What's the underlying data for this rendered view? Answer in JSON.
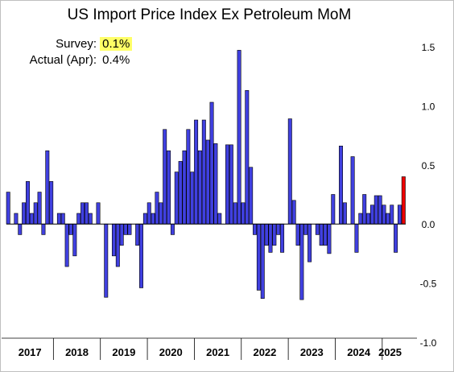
{
  "title": "US Import Price Index Ex Petroleum MoM",
  "annotations": {
    "survey_label": "Survey:",
    "survey_value": "0.1%",
    "actual_label": "Actual (Apr):",
    "actual_value": "0.4%",
    "highlight_color": "#ffff66"
  },
  "chart_data": {
    "type": "bar",
    "title": "US Import Price Index Ex Petroleum MoM",
    "y_axis_position": "right",
    "ylim": [
      -1.0,
      1.5
    ],
    "yticks": [
      "1.5",
      "1.0",
      "0.5",
      "0.0",
      "-0.5",
      "-1.0"
    ],
    "grid": false,
    "bar_color": "#4040e0",
    "highlight_bar_color": "#ee0000",
    "highlight_last": true,
    "year_labels": [
      "2017",
      "2018",
      "2019",
      "2020",
      "2021",
      "2022",
      "2023",
      "2024",
      "2025"
    ],
    "year_month_counts": [
      12,
      12,
      12,
      12,
      12,
      12,
      12,
      12,
      4
    ],
    "values": [
      0.27,
      0.0,
      0.09,
      -0.09,
      0.18,
      0.36,
      0.09,
      0.18,
      0.27,
      -0.09,
      0.62,
      0.36,
      0.0,
      0.09,
      0.09,
      -0.36,
      -0.09,
      -0.27,
      0.09,
      0.18,
      0.18,
      0.09,
      0.0,
      0.18,
      0.0,
      -0.62,
      0.0,
      -0.27,
      -0.36,
      -0.18,
      -0.09,
      -0.09,
      0.0,
      -0.18,
      -0.54,
      0.09,
      0.18,
      0.09,
      0.27,
      0.18,
      0.8,
      0.62,
      -0.09,
      0.44,
      0.53,
      0.62,
      0.8,
      0.44,
      0.88,
      0.62,
      0.88,
      0.71,
      1.03,
      0.68,
      0.09,
      0.0,
      0.67,
      0.67,
      0.18,
      1.47,
      0.18,
      1.13,
      0.48,
      -0.09,
      -0.56,
      -0.63,
      -0.18,
      -0.24,
      -0.18,
      -0.09,
      -0.24,
      0.0,
      0.89,
      0.2,
      -0.18,
      -0.64,
      -0.09,
      -0.32,
      0.0,
      -0.09,
      -0.18,
      -0.18,
      -0.25,
      0.25,
      0.0,
      0.66,
      0.18,
      0.0,
      0.57,
      -0.24,
      0.09,
      0.25,
      0.09,
      0.16,
      0.24,
      0.24,
      0.16,
      0.09,
      0.16,
      -0.24,
      0.16,
      0.4
    ]
  }
}
